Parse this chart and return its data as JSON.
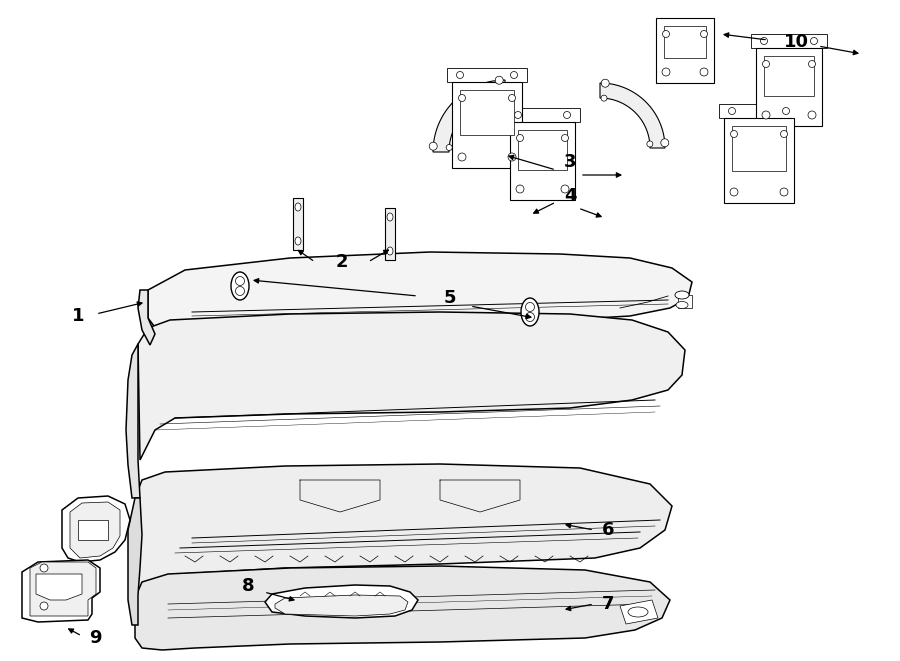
{
  "bg": "#ffffff",
  "lc": "#000000",
  "figsize": [
    9.0,
    6.61
  ],
  "dpi": 100
}
